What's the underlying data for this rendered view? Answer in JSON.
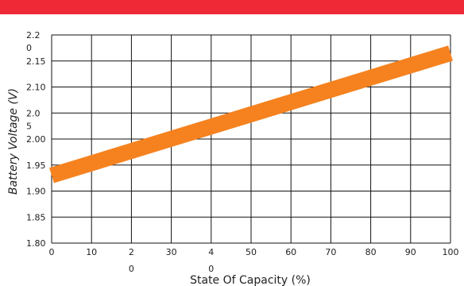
{
  "header": {
    "bar_color": "#ef2a36"
  },
  "chart_data": {
    "type": "line",
    "title": "",
    "xlabel": "State Of Capacity (%)",
    "ylabel": "Battery Voltage (V)",
    "xlim": [
      0,
      100
    ],
    "ylim": [
      1.8,
      2.2
    ],
    "grid": true,
    "x_ticks": [
      {
        "value": 0,
        "label": "0"
      },
      {
        "value": 10,
        "label": "10"
      },
      {
        "value": 20,
        "label": "2\n0"
      },
      {
        "value": 30,
        "label": "30"
      },
      {
        "value": 40,
        "label": "4\n0"
      },
      {
        "value": 50,
        "label": "50"
      },
      {
        "value": 60,
        "label": "60"
      },
      {
        "value": 70,
        "label": "70"
      },
      {
        "value": 80,
        "label": "80"
      },
      {
        "value": 90,
        "label": "90"
      },
      {
        "value": 100,
        "label": "100"
      }
    ],
    "y_ticks": [
      {
        "value": 1.8,
        "label": "1.80"
      },
      {
        "value": 1.85,
        "label": "1.85"
      },
      {
        "value": 1.9,
        "label": "1.90"
      },
      {
        "value": 1.95,
        "label": "1.95"
      },
      {
        "value": 2.0,
        "label": "2.00"
      },
      {
        "value": 2.05,
        "label": "2.0\n5"
      },
      {
        "value": 2.1,
        "label": "2.10"
      },
      {
        "value": 2.15,
        "label": "2.15"
      },
      {
        "value": 2.2,
        "label": "2.2\n0"
      }
    ],
    "series": [
      {
        "color": "#f5821f",
        "x": [
          0,
          100
        ],
        "y": [
          1.93,
          2.165
        ]
      }
    ]
  }
}
